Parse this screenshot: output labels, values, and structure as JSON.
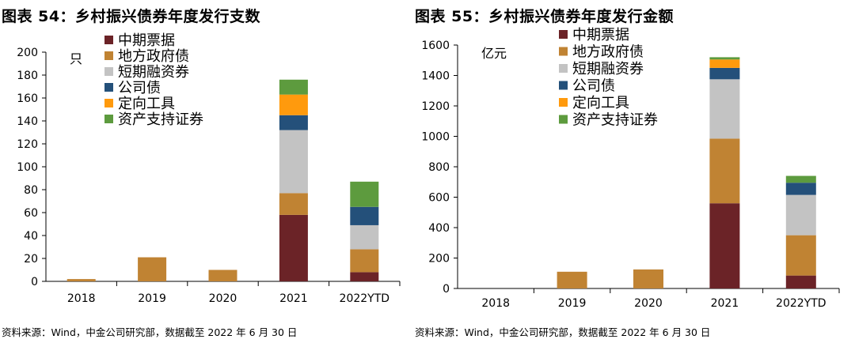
{
  "colors": {
    "中期票据": "#6B2327",
    "地方政府债": "#C08333",
    "短期融资券": "#C3C3C3",
    "公司债": "#24507A",
    "定向工具": "#FF9A0D",
    "资产支持证券": "#5D9B3E"
  },
  "panels": [
    {
      "title": "图表 54：乡村振兴债券年度发行支数",
      "source": "资料来源：Wind，中金公司研究部，数据截至 2022 年 6 月 30 日"
    },
    {
      "title": "图表 55：乡村振兴债券年度发行金额",
      "source": "资料来源：Wind，中金公司研究部，数据截至 2022 年 6 月 30 日"
    }
  ],
  "chart_data": [
    {
      "type": "bar",
      "stacked": true,
      "title": "图表 54：乡村振兴债券年度发行支数",
      "unit_label": "只",
      "categories": [
        "2018",
        "2019",
        "2020",
        "2021",
        "2022YTD"
      ],
      "ylim": [
        0,
        200
      ],
      "yticks": [
        0,
        20,
        40,
        60,
        80,
        100,
        120,
        140,
        160,
        180,
        200
      ],
      "grid": false,
      "legend": "top-left",
      "series": [
        {
          "name": "中期票据",
          "values": [
            0,
            0,
            0,
            58,
            8
          ]
        },
        {
          "name": "地方政府债",
          "values": [
            2,
            21,
            10,
            19,
            20
          ]
        },
        {
          "name": "短期融资券",
          "values": [
            0,
            0,
            0,
            55,
            21
          ]
        },
        {
          "name": "公司债",
          "values": [
            0,
            0,
            0,
            13,
            16
          ]
        },
        {
          "name": "定向工具",
          "values": [
            0,
            0,
            0,
            18,
            0
          ]
        },
        {
          "name": "资产支持证券",
          "values": [
            0,
            0,
            0,
            13,
            22
          ]
        }
      ]
    },
    {
      "type": "bar",
      "stacked": true,
      "title": "图表 55：乡村振兴债券年度发行金额",
      "unit_label": "亿元",
      "categories": [
        "2018",
        "2019",
        "2020",
        "2021",
        "2022YTD"
      ],
      "ylim": [
        0,
        1600
      ],
      "yticks": [
        0,
        200,
        400,
        600,
        800,
        1000,
        1200,
        1400,
        1600
      ],
      "grid": false,
      "legend": "top-left",
      "series": [
        {
          "name": "中期票据",
          "values": [
            0,
            0,
            0,
            560,
            85
          ]
        },
        {
          "name": "地方政府债",
          "values": [
            0,
            110,
            125,
            425,
            265
          ]
        },
        {
          "name": "短期融资券",
          "values": [
            0,
            0,
            0,
            390,
            265
          ]
        },
        {
          "name": "公司债",
          "values": [
            0,
            0,
            0,
            75,
            80
          ]
        },
        {
          "name": "定向工具",
          "values": [
            0,
            0,
            0,
            55,
            0
          ]
        },
        {
          "name": "资产支持证券",
          "values": [
            0,
            0,
            0,
            15,
            45
          ]
        }
      ]
    }
  ]
}
